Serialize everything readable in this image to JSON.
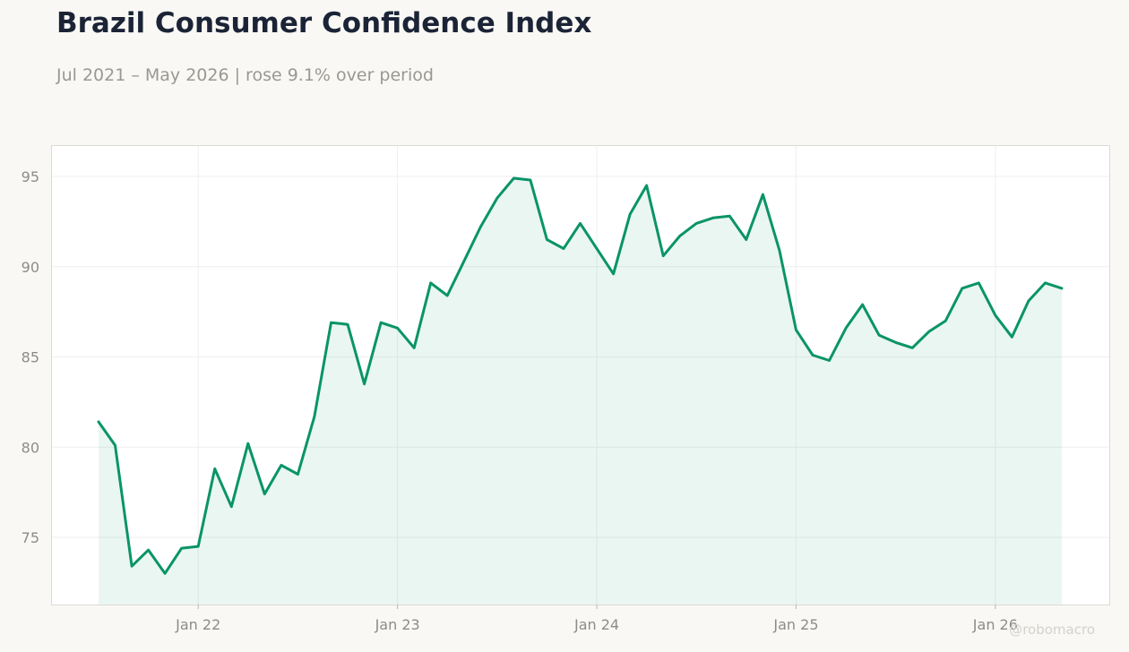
{
  "header": {
    "title": "Brazil Consumer Confidence Index",
    "subtitle": "Jul 2021 – May 2026 | rose 9.1% over period"
  },
  "watermark": "@robomacro",
  "colors": {
    "line": "#0a9468",
    "fill": "#0a9468",
    "background": "#f9f8f5",
    "plot_background": "#ffffff",
    "grid": "#efefef",
    "tick_text": "#8e8c88"
  },
  "chart_data": {
    "type": "area",
    "title": "Brazil Consumer Confidence Index",
    "subtitle": "Jul 2021 – May 2026 | rose 9.1% over period",
    "xlabel": "",
    "ylabel": "",
    "x_start": "2021-07",
    "x_end": "2026-05",
    "xticks": [
      "Jan 22",
      "Jan 23",
      "Jan 24",
      "Jan 25",
      "Jan 26"
    ],
    "xtick_dates": [
      "2022-01",
      "2023-01",
      "2024-01",
      "2025-01",
      "2026-01"
    ],
    "yticks": [
      75,
      80,
      85,
      90,
      95
    ],
    "ylim": [
      71.2,
      96.7
    ],
    "grid": true,
    "legend": "none",
    "series": [
      {
        "dates": [
          "2021-07",
          "2021-08",
          "2021-09",
          "2021-10",
          "2021-11",
          "2021-12",
          "2022-01",
          "2022-02",
          "2022-03",
          "2022-04",
          "2022-05",
          "2022-06",
          "2022-07",
          "2022-08",
          "2022-09",
          "2022-10",
          "2022-11",
          "2022-12",
          "2023-01",
          "2023-02",
          "2023-03",
          "2023-04",
          "2023-05",
          "2023-06",
          "2023-07",
          "2023-08",
          "2023-09",
          "2023-10",
          "2023-11",
          "2023-12",
          "2024-01",
          "2024-02",
          "2024-03",
          "2024-04",
          "2024-05",
          "2024-06",
          "2024-07",
          "2024-08",
          "2024-09",
          "2024-10",
          "2024-11",
          "2024-12",
          "2025-01",
          "2025-02",
          "2025-03",
          "2025-04",
          "2025-05",
          "2025-06",
          "2025-07",
          "2025-08",
          "2025-09",
          "2025-10",
          "2025-11",
          "2025-12",
          "2026-01",
          "2026-02",
          "2026-03",
          "2026-04",
          "2026-05"
        ],
        "values": [
          81.4,
          80.1,
          73.4,
          74.3,
          73.0,
          74.4,
          74.5,
          78.8,
          76.7,
          80.2,
          77.4,
          79.0,
          78.5,
          81.7,
          86.9,
          86.8,
          83.5,
          86.9,
          86.6,
          85.5,
          89.1,
          88.4,
          90.3,
          92.2,
          93.8,
          94.9,
          94.8,
          91.5,
          91.0,
          92.4,
          91.0,
          89.6,
          92.9,
          94.5,
          90.6,
          91.7,
          92.4,
          92.7,
          92.8,
          91.5,
          94.0,
          90.9,
          86.5,
          85.1,
          84.8,
          86.6,
          87.9,
          86.2,
          85.8,
          85.5,
          86.4,
          87.0,
          88.8,
          89.1,
          87.3,
          86.1,
          88.1,
          89.1,
          88.8
        ]
      }
    ]
  }
}
